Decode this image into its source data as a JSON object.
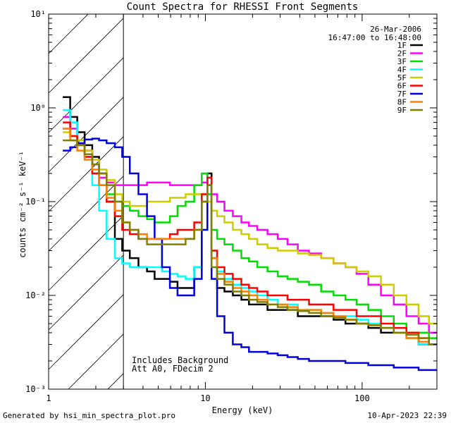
{
  "chart_data": {
    "type": "line",
    "title": "Count Spectra for RHESSI Front Segments",
    "xlabel": "Energy (keV)",
    "ylabel": "counts cm⁻² s⁻¹ keV⁻¹",
    "xscale": "log",
    "yscale": "log",
    "xlim": [
      1,
      300
    ],
    "ylim": [
      0.001,
      10
    ],
    "xticks": [
      {
        "value": 1,
        "label": "1"
      },
      {
        "value": 10,
        "label": "10"
      },
      {
        "value": 100,
        "label": "100"
      }
    ],
    "yticks": [
      {
        "value": 0.001,
        "label": "10⁻³"
      },
      {
        "value": 0.01,
        "label": "10⁻²"
      },
      {
        "value": 0.1,
        "label": "10⁻¹"
      },
      {
        "value": 1,
        "label": "10⁰"
      },
      {
        "value": 10,
        "label": "10¹"
      }
    ],
    "date": "26-Mar-2006",
    "time_range": "16:47:00 to 16:48:00",
    "annotation_lines": [
      "Includes Background",
      "Att A0, FDecim 2"
    ],
    "hatched_region_xmax": 3,
    "x": [
      1.3,
      1.45,
      1.6,
      1.8,
      2.0,
      2.2,
      2.5,
      2.8,
      3.1,
      3.5,
      4.0,
      4.5,
      5.0,
      5.6,
      6.3,
      7.0,
      8.0,
      9.0,
      10.0,
      10.6,
      11.3,
      12.5,
      14.0,
      16.0,
      18.0,
      20.0,
      23.0,
      27.0,
      31.0,
      36.0,
      42.0,
      50.0,
      60.0,
      72.0,
      85.0,
      100.0,
      120.0,
      145.0,
      175.0,
      210.0,
      250.0,
      285.0
    ],
    "series": [
      {
        "name": "1F",
        "color": "#000000",
        "values": [
          1.3,
          0.8,
          0.55,
          0.4,
          0.3,
          0.2,
          0.1,
          0.04,
          0.03,
          0.025,
          0.02,
          0.018,
          0.015,
          0.015,
          0.014,
          0.012,
          0.012,
          0.02,
          0.1,
          0.2,
          0.025,
          0.012,
          0.011,
          0.01,
          0.009,
          0.008,
          0.008,
          0.007,
          0.007,
          0.007,
          0.006,
          0.006,
          0.006,
          0.0055,
          0.005,
          0.005,
          0.0045,
          0.004,
          0.004,
          0.0035,
          0.003,
          0.003
        ]
      },
      {
        "name": "2F",
        "color": "#ff00ff",
        "values": [
          0.8,
          0.6,
          0.45,
          0.35,
          0.25,
          0.18,
          0.16,
          0.15,
          0.15,
          0.15,
          0.15,
          0.16,
          0.16,
          0.16,
          0.15,
          0.15,
          0.15,
          0.15,
          0.16,
          0.15,
          0.12,
          0.1,
          0.08,
          0.07,
          0.06,
          0.055,
          0.05,
          0.045,
          0.04,
          0.035,
          0.03,
          0.028,
          0.025,
          0.022,
          0.02,
          0.017,
          0.013,
          0.01,
          0.008,
          0.006,
          0.005,
          0.004
        ]
      },
      {
        "name": "3F",
        "color": "#00dd00",
        "values": [
          0.6,
          0.5,
          0.4,
          0.3,
          0.2,
          0.15,
          0.12,
          0.1,
          0.09,
          0.08,
          0.07,
          0.065,
          0.06,
          0.06,
          0.07,
          0.09,
          0.1,
          0.15,
          0.2,
          0.12,
          0.05,
          0.04,
          0.035,
          0.03,
          0.025,
          0.023,
          0.02,
          0.018,
          0.016,
          0.015,
          0.014,
          0.013,
          0.011,
          0.01,
          0.009,
          0.008,
          0.007,
          0.006,
          0.005,
          0.004,
          0.004,
          0.0035
        ]
      },
      {
        "name": "4F",
        "color": "#00ffff",
        "values": [
          0.95,
          0.7,
          0.45,
          0.3,
          0.15,
          0.08,
          0.04,
          0.025,
          0.022,
          0.02,
          0.02,
          0.02,
          0.02,
          0.018,
          0.017,
          0.016,
          0.015,
          0.02,
          0.05,
          0.15,
          0.03,
          0.018,
          0.015,
          0.013,
          0.012,
          0.011,
          0.01,
          0.009,
          0.008,
          0.008,
          0.007,
          0.007,
          0.0065,
          0.006,
          0.006,
          0.0055,
          0.005,
          0.0045,
          0.004,
          0.0035,
          0.003,
          0.003
        ]
      },
      {
        "name": "5F",
        "color": "#cccc00",
        "values": [
          0.55,
          0.5,
          0.45,
          0.35,
          0.28,
          0.22,
          0.17,
          0.12,
          0.1,
          0.09,
          0.09,
          0.1,
          0.1,
          0.1,
          0.11,
          0.11,
          0.12,
          0.12,
          0.12,
          0.1,
          0.08,
          0.07,
          0.06,
          0.05,
          0.045,
          0.04,
          0.035,
          0.032,
          0.03,
          0.03,
          0.028,
          0.027,
          0.025,
          0.022,
          0.02,
          0.018,
          0.016,
          0.013,
          0.01,
          0.008,
          0.006,
          0.005
        ]
      },
      {
        "name": "6F",
        "color": "#ff0000",
        "values": [
          0.7,
          0.5,
          0.4,
          0.3,
          0.2,
          0.15,
          0.1,
          0.07,
          0.05,
          0.045,
          0.04,
          0.04,
          0.04,
          0.04,
          0.045,
          0.05,
          0.05,
          0.06,
          0.12,
          0.18,
          0.03,
          0.02,
          0.017,
          0.015,
          0.013,
          0.012,
          0.011,
          0.01,
          0.01,
          0.009,
          0.009,
          0.008,
          0.008,
          0.007,
          0.007,
          0.006,
          0.006,
          0.005,
          0.0045,
          0.004,
          0.0035,
          0.003
        ]
      },
      {
        "name": "7F",
        "color": "#0000dd",
        "values": [
          0.35,
          0.38,
          0.42,
          0.46,
          0.47,
          0.45,
          0.42,
          0.38,
          0.3,
          0.2,
          0.12,
          0.07,
          0.04,
          0.02,
          0.012,
          0.01,
          0.01,
          0.015,
          0.05,
          0.15,
          0.015,
          0.006,
          0.004,
          0.003,
          0.0028,
          0.0025,
          0.0025,
          0.0024,
          0.0023,
          0.0022,
          0.0021,
          0.002,
          0.002,
          0.002,
          0.0019,
          0.0019,
          0.0018,
          0.0018,
          0.0017,
          0.0017,
          0.0016,
          0.0016
        ]
      },
      {
        "name": "8F",
        "color": "#ff8000",
        "values": [
          0.6,
          0.45,
          0.35,
          0.28,
          0.22,
          0.15,
          0.11,
          0.08,
          0.06,
          0.05,
          0.045,
          0.04,
          0.04,
          0.04,
          0.04,
          0.04,
          0.04,
          0.05,
          0.1,
          0.15,
          0.025,
          0.017,
          0.014,
          0.012,
          0.011,
          0.01,
          0.009,
          0.008,
          0.008,
          0.0075,
          0.007,
          0.007,
          0.0065,
          0.006,
          0.0055,
          0.005,
          0.0048,
          0.0045,
          0.004,
          0.0035,
          0.0032,
          0.003
        ]
      },
      {
        "name": "9F",
        "color": "#808000",
        "values": [
          0.45,
          0.45,
          0.4,
          0.32,
          0.25,
          0.2,
          0.15,
          0.1,
          0.06,
          0.05,
          0.04,
          0.035,
          0.035,
          0.035,
          0.035,
          0.035,
          0.04,
          0.05,
          0.1,
          0.15,
          0.02,
          0.015,
          0.013,
          0.011,
          0.01,
          0.009,
          0.0085,
          0.008,
          0.0075,
          0.007,
          0.0068,
          0.0065,
          0.006,
          0.0058,
          0.0055,
          0.005,
          0.0048,
          0.0045,
          0.004,
          0.0038,
          0.0035,
          0.003
        ]
      }
    ]
  },
  "footer": {
    "generated_by": "Generated by hsi_min_spectra_plot.pro",
    "timestamp": "10-Apr-2023 22:39"
  }
}
